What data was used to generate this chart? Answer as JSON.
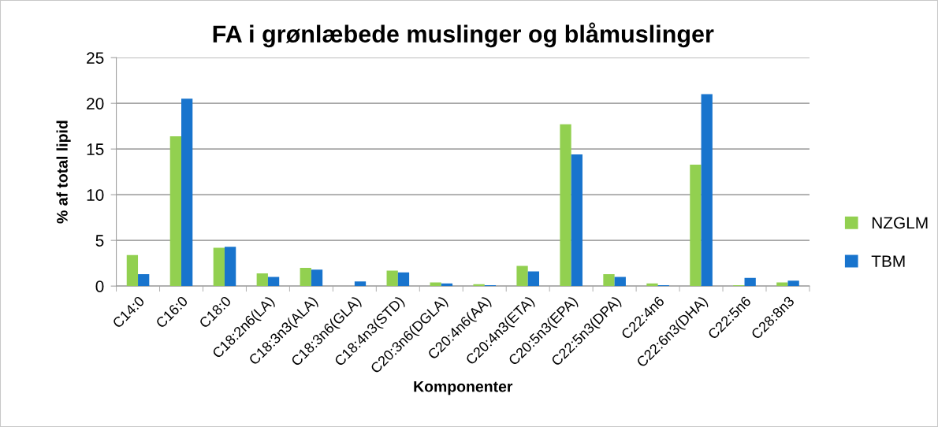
{
  "chart_data": {
    "type": "bar",
    "title": "FA i grønlæbede muslinger og blåmuslinger",
    "xlabel": "Komponenter",
    "ylabel": "% af total lipid",
    "categories": [
      "C14:0",
      "C16:0",
      "C18:0",
      "C18:2n6(LA)",
      "C18:3n3(ALA)",
      "C18:3n6(GLA)",
      "C18:4n3(STD)",
      "C20:3n6(DGLA)",
      "C20:4n6(AA)",
      "C20:4n3(ETA)",
      "C20:5n3(EPA)",
      "C22:5n3(DPA)",
      "C22:4n6",
      "C22:6n3(DHA)",
      "C22:5n6",
      "C28:8n3"
    ],
    "series": [
      {
        "name": "NZGLM",
        "color": "#92d050",
        "values": [
          3.4,
          16.4,
          4.2,
          1.4,
          2.0,
          0,
          1.7,
          0.4,
          0.2,
          2.2,
          17.7,
          1.3,
          0.3,
          13.3,
          0.1,
          0.4
        ]
      },
      {
        "name": "TBM",
        "color": "#1874cd",
        "values": [
          1.3,
          20.5,
          4.3,
          1.0,
          1.8,
          0.5,
          1.5,
          0.3,
          0.1,
          1.6,
          14.4,
          1.0,
          0.1,
          21.0,
          0.9,
          0.6
        ]
      }
    ],
    "ylim": [
      0,
      25
    ],
    "yticks": [
      0,
      5,
      10,
      15,
      20,
      25
    ],
    "grid": "y",
    "legend": "right"
  }
}
